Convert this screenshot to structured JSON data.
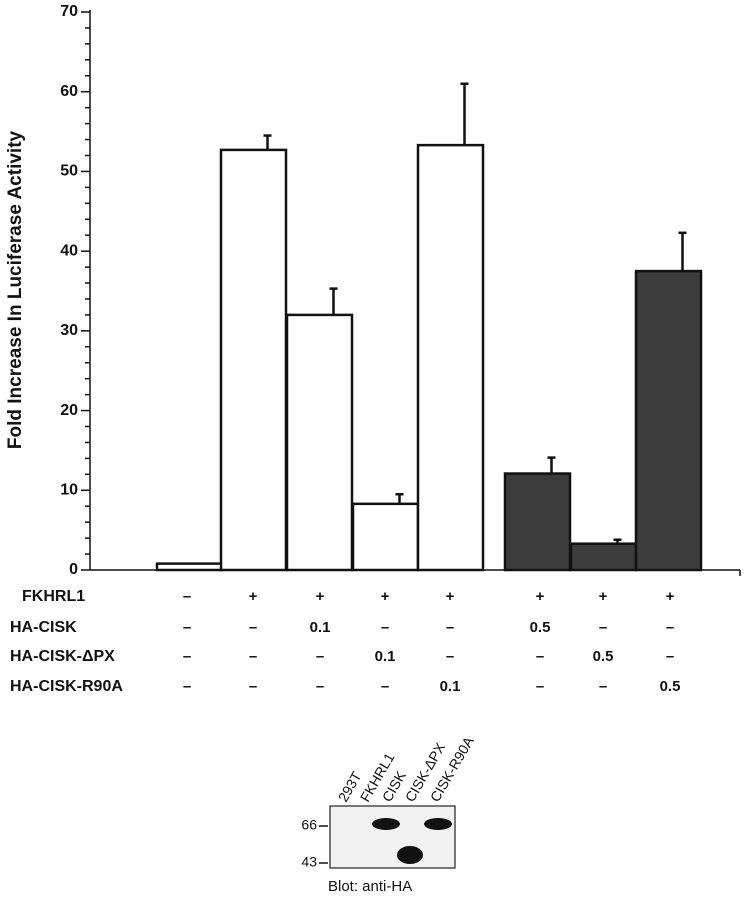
{
  "chart_data": {
    "type": "bar",
    "y_label": "Fold Increase In Luciferase Activity",
    "values": [
      0.8,
      52.7,
      32,
      8.3,
      53.3,
      12.1,
      3.3,
      37.5
    ],
    "errors": [
      0,
      1.8,
      3.3,
      1.2,
      7.7,
      2,
      0.5,
      4.8
    ],
    "colors": [
      "#ffffff",
      "#ffffff",
      "#ffffff",
      "#ffffff",
      "#ffffff",
      "#3c3c3c",
      "#3c3c3c",
      "#3c3c3c"
    ],
    "ylim": [
      0,
      70
    ],
    "yticks": [
      0,
      10,
      20,
      30,
      40,
      50,
      60,
      70
    ],
    "yticks_minor": [
      2,
      4,
      6,
      8,
      12,
      14,
      16,
      18,
      22,
      24,
      26,
      28,
      32,
      34,
      36,
      38,
      42,
      44,
      46,
      48,
      52,
      54,
      56,
      58,
      62,
      64,
      66,
      68
    ],
    "conditions": [
      {
        "label": "FKHRL1",
        "cells": [
          "–",
          "+",
          "+",
          "+",
          "+",
          "+",
          "+",
          "+"
        ]
      },
      {
        "label": "HA-CISK",
        "cells": [
          "–",
          "–",
          "0.1",
          "–",
          "–",
          "0.5",
          "–",
          "–"
        ]
      },
      {
        "label": "HA-CISK-ΔPX",
        "cells": [
          "–",
          "–",
          "–",
          "0.1",
          "–",
          "–",
          "0.5",
          "–"
        ]
      },
      {
        "label": "HA-CISK-R90A",
        "cells": [
          "–",
          "–",
          "–",
          "–",
          "0.1",
          "–",
          "–",
          "0.5"
        ]
      }
    ],
    "blot": {
      "lanes": [
        "293T",
        "FKHRL1",
        "CISK",
        "CISK-ΔPX",
        "CISK-R90A"
      ],
      "markers": [
        "66",
        "43"
      ],
      "caption": "Blot: anti-HA"
    }
  }
}
